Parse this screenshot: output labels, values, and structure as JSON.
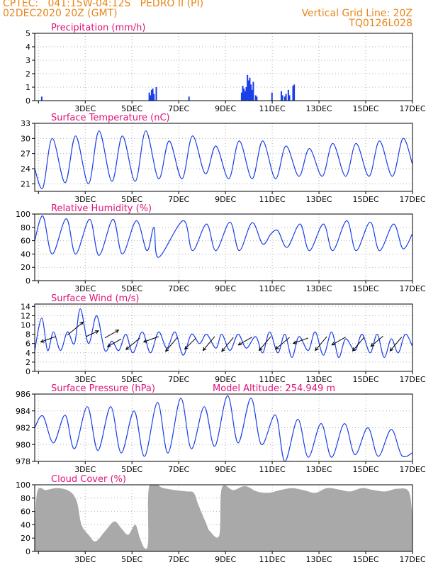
{
  "header": {
    "line1": "CPTEC:   041:15W-04:12S   PEDRO II (PI)",
    "line2": "02DEC2020 20Z (GMT)",
    "grid_note": "Vertical Grid Line: 20Z",
    "code": "TQ0126L028",
    "color": "#e8861a"
  },
  "colors": {
    "title": "#e0127a",
    "series": "#1a3ee8",
    "cloud": "#a9a9a9",
    "grid": "#b0b0b0"
  },
  "x_axis": {
    "start_day": 2,
    "start_hour": 20,
    "end_day": 17,
    "end_hour": 0,
    "tick_labels": [
      "3DEC",
      "5DEC",
      "7DEC",
      "9DEC",
      "11DEC",
      "13DEC",
      "15DEC",
      "17DEC"
    ]
  },
  "chart_data": [
    {
      "id": "precip",
      "type": "bar",
      "title": "Precipitation (mm/h)",
      "ylim": [
        0,
        5
      ],
      "yticks": [
        0,
        1,
        2,
        3,
        4,
        5
      ],
      "grid": true,
      "series_note": "hourly precipitation, time in days (decimal) since 02DEC 20Z",
      "bars": [
        [
          0.3,
          0.3
        ],
        [
          4.9,
          0.6
        ],
        [
          4.95,
          0.4
        ],
        [
          5.0,
          0.8
        ],
        [
          5.05,
          0.9
        ],
        [
          5.1,
          0.5
        ],
        [
          5.2,
          1.0
        ],
        [
          6.6,
          0.3
        ],
        [
          8.85,
          0.6
        ],
        [
          8.9,
          1.1
        ],
        [
          8.95,
          0.9
        ],
        [
          9.0,
          0.7
        ],
        [
          9.05,
          1.0
        ],
        [
          9.1,
          1.9
        ],
        [
          9.15,
          1.5
        ],
        [
          9.2,
          1.7
        ],
        [
          9.25,
          1.2
        ],
        [
          9.3,
          0.8
        ],
        [
          9.35,
          1.4
        ],
        [
          9.45,
          0.4
        ],
        [
          9.5,
          0.3
        ],
        [
          10.15,
          0.6
        ],
        [
          10.55,
          0.7
        ],
        [
          10.6,
          0.4
        ],
        [
          10.7,
          0.3
        ],
        [
          10.75,
          0.5
        ],
        [
          10.85,
          0.8
        ],
        [
          10.9,
          0.4
        ],
        [
          11.05,
          1.1
        ],
        [
          11.1,
          1.2
        ]
      ]
    },
    {
      "id": "temp",
      "type": "line",
      "title": "Surface Temperature (nC)",
      "ylim": [
        19.5,
        33
      ],
      "yticks": [
        21,
        24,
        27,
        30,
        33
      ],
      "grid": true,
      "min_max": [
        [
          0.0,
          24.0
        ],
        [
          0.35,
          20.2
        ],
        [
          0.75,
          30.0
        ],
        [
          1.3,
          21.2
        ],
        [
          1.75,
          30.5
        ],
        [
          2.3,
          21.0
        ],
        [
          2.75,
          31.5
        ],
        [
          3.3,
          21.5
        ],
        [
          3.75,
          30.5
        ],
        [
          4.3,
          21.5
        ],
        [
          4.75,
          31.5
        ],
        [
          5.3,
          22.0
        ],
        [
          5.75,
          29.5
        ],
        [
          6.3,
          22.0
        ],
        [
          6.75,
          30.5
        ],
        [
          7.3,
          23.0
        ],
        [
          7.75,
          28.5
        ],
        [
          8.3,
          22.0
        ],
        [
          8.75,
          29.5
        ],
        [
          9.3,
          22.0
        ],
        [
          9.75,
          29.5
        ],
        [
          10.3,
          22.0
        ],
        [
          10.75,
          28.5
        ],
        [
          11.3,
          22.5
        ],
        [
          11.75,
          28.0
        ],
        [
          12.3,
          22.5
        ],
        [
          12.75,
          29.0
        ],
        [
          13.3,
          22.5
        ],
        [
          13.75,
          29.0
        ],
        [
          14.3,
          22.5
        ],
        [
          14.75,
          29.5
        ],
        [
          15.3,
          22.5
        ],
        [
          15.75,
          30.0
        ],
        [
          16.15,
          25.0
        ]
      ]
    },
    {
      "id": "rh",
      "type": "line",
      "title": "Relative Humidity (%)",
      "ylim": [
        0,
        100
      ],
      "yticks": [
        0,
        20,
        40,
        60,
        80,
        100
      ],
      "grid": true,
      "min_max": [
        [
          0.0,
          60
        ],
        [
          0.35,
          97
        ],
        [
          0.75,
          40
        ],
        [
          1.35,
          93
        ],
        [
          1.75,
          40
        ],
        [
          2.35,
          92
        ],
        [
          2.75,
          38
        ],
        [
          3.35,
          92
        ],
        [
          3.75,
          40
        ],
        [
          4.35,
          90
        ],
        [
          4.8,
          45
        ],
        [
          5.1,
          80
        ],
        [
          5.3,
          35
        ],
        [
          6.35,
          90
        ],
        [
          6.75,
          45
        ],
        [
          7.35,
          85
        ],
        [
          7.75,
          45
        ],
        [
          8.35,
          88
        ],
        [
          8.75,
          45
        ],
        [
          9.3,
          87
        ],
        [
          9.75,
          55
        ],
        [
          10.1,
          70
        ],
        [
          10.4,
          75
        ],
        [
          10.8,
          50
        ],
        [
          11.35,
          85
        ],
        [
          11.75,
          45
        ],
        [
          12.35,
          85
        ],
        [
          12.75,
          45
        ],
        [
          13.35,
          90
        ],
        [
          13.75,
          45
        ],
        [
          14.35,
          88
        ],
        [
          14.75,
          45
        ],
        [
          15.35,
          85
        ],
        [
          15.75,
          48
        ],
        [
          16.15,
          70
        ]
      ]
    },
    {
      "id": "wind",
      "type": "line",
      "title": "Surface Wind (m/s)",
      "ylim": [
        0,
        14.5
      ],
      "yticks": [
        0,
        2,
        4,
        6,
        8,
        10,
        12,
        14
      ],
      "grid": true,
      "min_max": [
        [
          0.0,
          4.5
        ],
        [
          0.3,
          11.5
        ],
        [
          0.55,
          4.5
        ],
        [
          0.8,
          8.5
        ],
        [
          1.1,
          4.5
        ],
        [
          1.4,
          8.5
        ],
        [
          1.7,
          6.0
        ],
        [
          1.95,
          13.5
        ],
        [
          2.3,
          6.0
        ],
        [
          2.65,
          12.0
        ],
        [
          3.0,
          4.5
        ],
        [
          3.3,
          6.5
        ],
        [
          3.6,
          4.5
        ],
        [
          3.9,
          8.0
        ],
        [
          4.2,
          4.0
        ],
        [
          4.6,
          8.5
        ],
        [
          4.95,
          4.0
        ],
        [
          5.3,
          8.5
        ],
        [
          5.65,
          5.0
        ],
        [
          6.0,
          8.5
        ],
        [
          6.35,
          3.5
        ],
        [
          6.7,
          8.0
        ],
        [
          7.05,
          6.0
        ],
        [
          7.35,
          8.0
        ],
        [
          7.75,
          5.0
        ],
        [
          8.0,
          8.0
        ],
        [
          8.35,
          4.5
        ],
        [
          8.7,
          8.0
        ],
        [
          9.05,
          5.0
        ],
        [
          9.45,
          7.5
        ],
        [
          9.75,
          4.0
        ],
        [
          10.05,
          8.5
        ],
        [
          10.4,
          4.0
        ],
        [
          10.7,
          8.0
        ],
        [
          11.0,
          3.0
        ],
        [
          11.3,
          7.5
        ],
        [
          11.7,
          4.5
        ],
        [
          12.0,
          8.5
        ],
        [
          12.35,
          3.5
        ],
        [
          12.7,
          8.5
        ],
        [
          13.0,
          3.0
        ],
        [
          13.3,
          7.0
        ],
        [
          13.7,
          4.5
        ],
        [
          14.0,
          8.0
        ],
        [
          14.35,
          4.0
        ],
        [
          14.65,
          8.0
        ],
        [
          14.95,
          3.0
        ],
        [
          15.25,
          7.0
        ],
        [
          15.55,
          4.0
        ],
        [
          15.85,
          8.0
        ],
        [
          16.15,
          5.5
        ]
      ],
      "arrows": [
        [
          0.9,
          7.5,
          200,
          7.0
        ],
        [
          1.4,
          7.8,
          40,
          9.0
        ],
        [
          2.2,
          7.5,
          25,
          6.0
        ],
        [
          3.0,
          7.2,
          30,
          7.0
        ],
        [
          3.7,
          7.0,
          210,
          7.0
        ],
        [
          4.5,
          7.2,
          220,
          8.0
        ],
        [
          5.3,
          7.5,
          200,
          7.0
        ],
        [
          6.1,
          7.3,
          230,
          8.0
        ],
        [
          6.9,
          7.2,
          225,
          7.0
        ],
        [
          7.7,
          7.5,
          230,
          8.0
        ],
        [
          8.5,
          7.3,
          230,
          8.0
        ],
        [
          9.3,
          7.4,
          210,
          7.0
        ],
        [
          10.1,
          7.5,
          230,
          8.0
        ],
        [
          10.9,
          7.3,
          220,
          8.0
        ],
        [
          11.7,
          7.2,
          200,
          7.0
        ],
        [
          12.5,
          7.5,
          230,
          8.0
        ],
        [
          13.3,
          7.4,
          210,
          7.0
        ],
        [
          14.1,
          7.4,
          230,
          8.0
        ],
        [
          14.9,
          7.6,
          220,
          7.0
        ],
        [
          15.7,
          7.4,
          230,
          8.0
        ]
      ]
    },
    {
      "id": "pressure",
      "type": "line",
      "title": "Surface Pressure (hPa)",
      "subtitle": "Model Altitude: 254.949 m",
      "ylim": [
        978,
        986
      ],
      "yticks": [
        978,
        980,
        982,
        984,
        986
      ],
      "grid": true,
      "min_max": [
        [
          0.0,
          982.0
        ],
        [
          0.35,
          983.4
        ],
        [
          0.8,
          980.2
        ],
        [
          1.3,
          983.5
        ],
        [
          1.7,
          979.5
        ],
        [
          2.25,
          984.5
        ],
        [
          2.7,
          979.3
        ],
        [
          3.25,
          984.5
        ],
        [
          3.7,
          979.0
        ],
        [
          4.25,
          984.0
        ],
        [
          4.7,
          978.6
        ],
        [
          5.25,
          985.0
        ],
        [
          5.7,
          979.0
        ],
        [
          6.25,
          985.5
        ],
        [
          6.7,
          979.5
        ],
        [
          7.25,
          984.5
        ],
        [
          7.7,
          979.8
        ],
        [
          8.25,
          985.8
        ],
        [
          8.7,
          980.2
        ],
        [
          9.25,
          985.5
        ],
        [
          9.7,
          980.0
        ],
        [
          10.3,
          983.5
        ],
        [
          10.7,
          978.0
        ],
        [
          11.25,
          983.0
        ],
        [
          11.7,
          978.5
        ],
        [
          12.25,
          982.5
        ],
        [
          12.7,
          978.5
        ],
        [
          13.25,
          982.5
        ],
        [
          13.7,
          978.8
        ],
        [
          14.25,
          982.0
        ],
        [
          14.7,
          978.6
        ],
        [
          15.25,
          981.8
        ],
        [
          15.7,
          978.7
        ],
        [
          16.15,
          979.0
        ]
      ]
    },
    {
      "id": "cloud",
      "type": "area",
      "title": "Cloud Cover (%)",
      "ylim": [
        0,
        100
      ],
      "yticks": [
        0,
        20,
        40,
        60,
        80,
        100
      ],
      "grid": true,
      "points": [
        [
          0.0,
          5
        ],
        [
          0.1,
          88
        ],
        [
          0.5,
          92
        ],
        [
          1.0,
          95
        ],
        [
          1.5,
          90
        ],
        [
          1.8,
          75
        ],
        [
          2.0,
          40
        ],
        [
          2.3,
          25
        ],
        [
          2.6,
          15
        ],
        [
          3.0,
          30
        ],
        [
          3.4,
          45
        ],
        [
          3.7,
          35
        ],
        [
          4.0,
          25
        ],
        [
          4.3,
          40
        ],
        [
          4.5,
          20
        ],
        [
          4.7,
          5
        ],
        [
          4.85,
          15
        ],
        [
          4.9,
          98
        ],
        [
          5.5,
          95
        ],
        [
          6.0,
          92
        ],
        [
          6.5,
          90
        ],
        [
          6.8,
          88
        ],
        [
          7.0,
          70
        ],
        [
          7.3,
          45
        ],
        [
          7.5,
          30
        ],
        [
          7.9,
          25
        ],
        [
          8.0,
          95
        ],
        [
          8.5,
          92
        ],
        [
          9.0,
          98
        ],
        [
          9.5,
          90
        ],
        [
          10.0,
          88
        ],
        [
          10.5,
          92
        ],
        [
          11.0,
          95
        ],
        [
          11.5,
          92
        ],
        [
          12.0,
          88
        ],
        [
          12.5,
          95
        ],
        [
          13.0,
          93
        ],
        [
          13.5,
          90
        ],
        [
          14.0,
          95
        ],
        [
          14.5,
          92
        ],
        [
          15.0,
          90
        ],
        [
          15.5,
          94
        ],
        [
          16.0,
          90
        ],
        [
          16.15,
          55
        ]
      ]
    }
  ]
}
